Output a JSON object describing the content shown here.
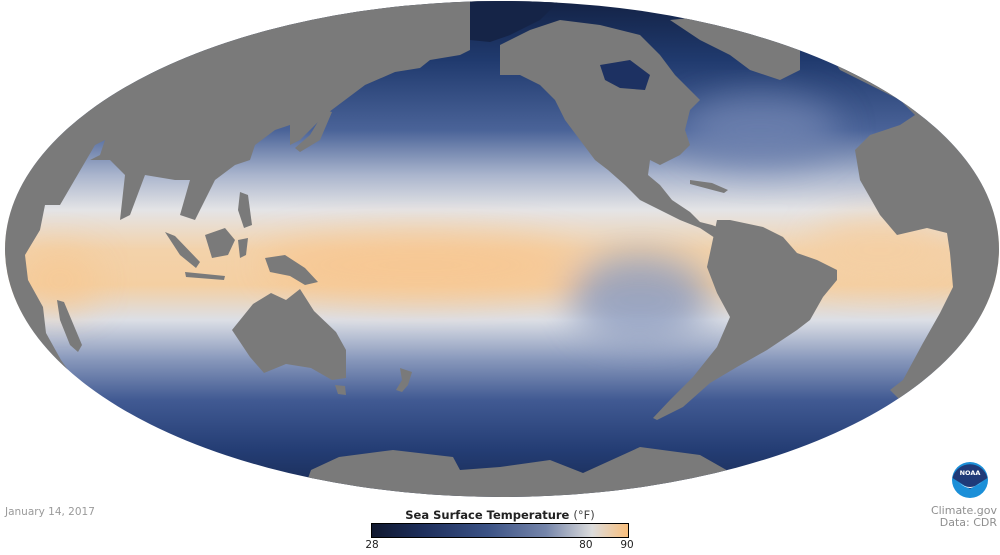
{
  "map": {
    "projection": "mollweide-like world (Pacific-centered)",
    "land_color": "#7a7a7a",
    "ocean_colors": {
      "cold": "#121f40",
      "mid": "#4b6497",
      "neutral": "#e3e3e3",
      "warm": "#f7c58d"
    }
  },
  "date": "January 14, 2017",
  "legend": {
    "title": "Sea Surface Temperature",
    "unit": "(°F)",
    "min": 28,
    "max": 90,
    "ticks": [
      {
        "label": "28",
        "value": 28
      },
      {
        "label": "80",
        "value": 80
      },
      {
        "label": "90",
        "value": 90
      }
    ],
    "colors": [
      "#10182f",
      "#1e2f5c",
      "#3b5285",
      "#7585aa",
      "#dcdcdc",
      "#f9bf7d"
    ]
  },
  "credits": {
    "line1": "Climate.gov",
    "line2": "Data: CDR",
    "logo_text": "NOAA"
  }
}
